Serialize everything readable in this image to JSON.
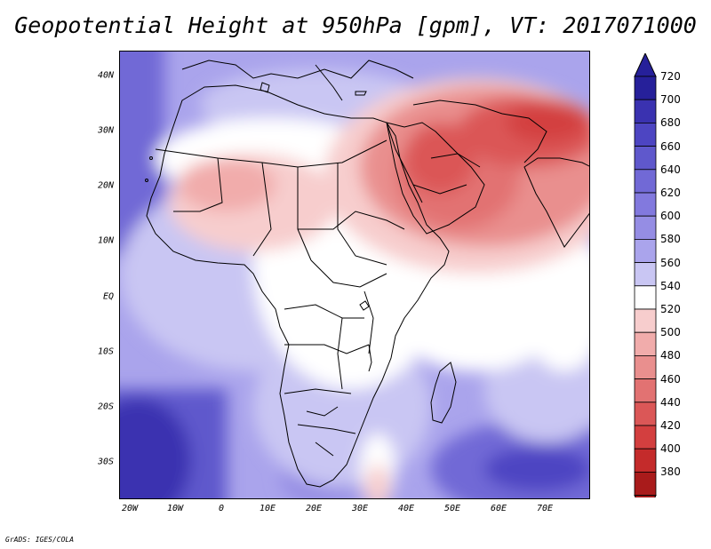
{
  "title": "Geopotential Height at 950hPa [gpm], VT: 2017071000",
  "credit": "GrADS: IGES/COLA",
  "lat_labels": [
    "40N",
    "30N",
    "20N",
    "10N",
    "EQ",
    "10S",
    "20S",
    "30S"
  ],
  "lon_labels": [
    "20W",
    "10W",
    "0",
    "10E",
    "20E",
    "30E",
    "40E",
    "50E",
    "60E",
    "70E"
  ],
  "colorbar": {
    "levels": [
      "720",
      "700",
      "680",
      "660",
      "640",
      "620",
      "600",
      "580",
      "560",
      "540",
      "520",
      "500",
      "480",
      "460",
      "440",
      "420",
      "400",
      "380"
    ],
    "colors": [
      "#26209a",
      "#3a32b0",
      "#4d45c2",
      "#5f58cc",
      "#7169d6",
      "#8279de",
      "#958de4",
      "#aaa4ec",
      "#c9c6f3",
      "#ffffff",
      "#f7cdcd",
      "#f1acab",
      "#e98f8e",
      "#e27272",
      "#db5757",
      "#d33f3f",
      "#c42b2b",
      "#a91b1b"
    ]
  },
  "map": {
    "region": "Africa and Middle East",
    "lon_range": [
      "20W",
      "80E"
    ],
    "lat_range": [
      "37S",
      "45N"
    ],
    "colors": {
      "ocean_high": "#5f58cc",
      "ocean_very_high": "#3a32b0",
      "mid_blue": "#958de4",
      "light_blue": "#c9c6f3",
      "neutral": "#ffffff",
      "light_red": "#f1acab",
      "mid_red": "#e27272",
      "dark_red": "#c42b2b",
      "border": "#000000"
    }
  }
}
